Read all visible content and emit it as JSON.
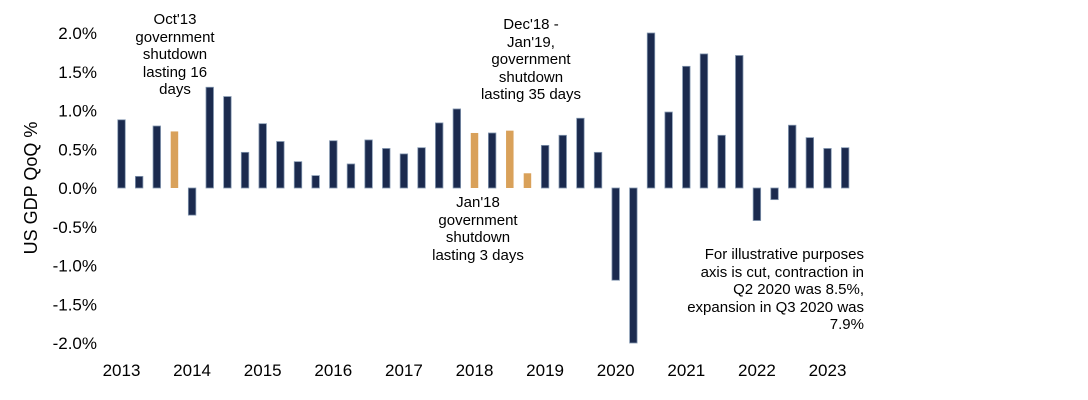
{
  "chart_data": {
    "type": "bar",
    "title": "",
    "xlabel": "",
    "ylabel": "US GDP QoQ %",
    "ylim": [
      -2.0,
      2.0
    ],
    "grid": false,
    "y_ticks": [
      {
        "value": 2.0,
        "label": "2.0%"
      },
      {
        "value": 1.5,
        "label": "1.5%"
      },
      {
        "value": 1.0,
        "label": "1.0%"
      },
      {
        "value": 0.5,
        "label": "0.5%"
      },
      {
        "value": 0.0,
        "label": "0.0%"
      },
      {
        "value": -0.5,
        "label": "-0.5%"
      },
      {
        "value": -1.0,
        "label": "-1.0%"
      },
      {
        "value": -1.5,
        "label": "-1.5%"
      },
      {
        "value": -2.0,
        "label": "-2.0%"
      }
    ],
    "year_labels": [
      "2013",
      "2014",
      "2015",
      "2016",
      "2017",
      "2018",
      "2019",
      "2020",
      "2021",
      "2022",
      "2023"
    ],
    "colors": {
      "default": "#1b2a4e",
      "shutdown": "#d9a15a",
      "border": "#8497b0"
    },
    "bars": [
      {
        "q": "2013 Q1",
        "value": 0.88,
        "shutdown": false
      },
      {
        "q": "2013 Q2",
        "value": 0.15,
        "shutdown": false
      },
      {
        "q": "2013 Q3",
        "value": 0.8,
        "shutdown": false
      },
      {
        "q": "2013 Q4",
        "value": 0.73,
        "shutdown": true
      },
      {
        "q": "2014 Q1",
        "value": -0.35,
        "shutdown": false
      },
      {
        "q": "2014 Q2",
        "value": 1.3,
        "shutdown": false
      },
      {
        "q": "2014 Q3",
        "value": 1.18,
        "shutdown": false
      },
      {
        "q": "2014 Q4",
        "value": 0.46,
        "shutdown": false
      },
      {
        "q": "2015 Q1",
        "value": 0.83,
        "shutdown": false
      },
      {
        "q": "2015 Q2",
        "value": 0.6,
        "shutdown": false
      },
      {
        "q": "2015 Q3",
        "value": 0.34,
        "shutdown": false
      },
      {
        "q": "2015 Q4",
        "value": 0.16,
        "shutdown": false
      },
      {
        "q": "2016 Q1",
        "value": 0.61,
        "shutdown": false
      },
      {
        "q": "2016 Q2",
        "value": 0.31,
        "shutdown": false
      },
      {
        "q": "2016 Q3",
        "value": 0.62,
        "shutdown": false
      },
      {
        "q": "2016 Q4",
        "value": 0.51,
        "shutdown": false
      },
      {
        "q": "2017 Q1",
        "value": 0.44,
        "shutdown": false
      },
      {
        "q": "2017 Q2",
        "value": 0.52,
        "shutdown": false
      },
      {
        "q": "2017 Q3",
        "value": 0.84,
        "shutdown": false
      },
      {
        "q": "2017 Q4",
        "value": 1.02,
        "shutdown": false
      },
      {
        "q": "2018 Q1",
        "value": 0.71,
        "shutdown": true
      },
      {
        "q": "2018 Q2",
        "value": 0.71,
        "shutdown": false
      },
      {
        "q": "2018 Q3",
        "value": 0.74,
        "shutdown": true
      },
      {
        "q": "2018 Q4",
        "value": 0.19,
        "shutdown": true
      },
      {
        "q": "2019 Q1",
        "value": 0.55,
        "shutdown": false
      },
      {
        "q": "2019 Q2",
        "value": 0.68,
        "shutdown": false
      },
      {
        "q": "2019 Q3",
        "value": 0.9,
        "shutdown": false
      },
      {
        "q": "2019 Q4",
        "value": 0.46,
        "shutdown": false
      },
      {
        "q": "2020 Q1",
        "value": -1.19,
        "shutdown": false
      },
      {
        "q": "2020 Q2",
        "value": -2.0,
        "shutdown": false
      },
      {
        "q": "2020 Q3",
        "value": 2.0,
        "shutdown": false
      },
      {
        "q": "2020 Q4",
        "value": 0.98,
        "shutdown": false
      },
      {
        "q": "2021 Q1",
        "value": 1.57,
        "shutdown": false
      },
      {
        "q": "2021 Q2",
        "value": 1.73,
        "shutdown": false
      },
      {
        "q": "2021 Q3",
        "value": 0.68,
        "shutdown": false
      },
      {
        "q": "2021 Q4",
        "value": 1.71,
        "shutdown": false
      },
      {
        "q": "2022 Q1",
        "value": -0.42,
        "shutdown": false
      },
      {
        "q": "2022 Q2",
        "value": -0.15,
        "shutdown": false
      },
      {
        "q": "2022 Q3",
        "value": 0.81,
        "shutdown": false
      },
      {
        "q": "2022 Q4",
        "value": 0.65,
        "shutdown": false
      },
      {
        "q": "2023 Q1",
        "value": 0.51,
        "shutdown": false
      },
      {
        "q": "2023 Q2",
        "value": 0.52,
        "shutdown": false
      }
    ]
  },
  "annotations": {
    "oct13": [
      "Oct'13",
      "government",
      "shutdown",
      "lasting 16",
      "days"
    ],
    "dec18": [
      "Dec'18 -",
      "Jan'19,",
      "government",
      "shutdown",
      "lasting 35 days"
    ],
    "jan18": [
      "Jan'18",
      "government",
      "shutdown",
      "lasting 3 days"
    ],
    "axis_cut": [
      "For illustrative purposes",
      "axis is cut, contraction in",
      "Q2 2020 was 8.5%,",
      "expansion in Q3 2020 was",
      "7.9%"
    ]
  }
}
